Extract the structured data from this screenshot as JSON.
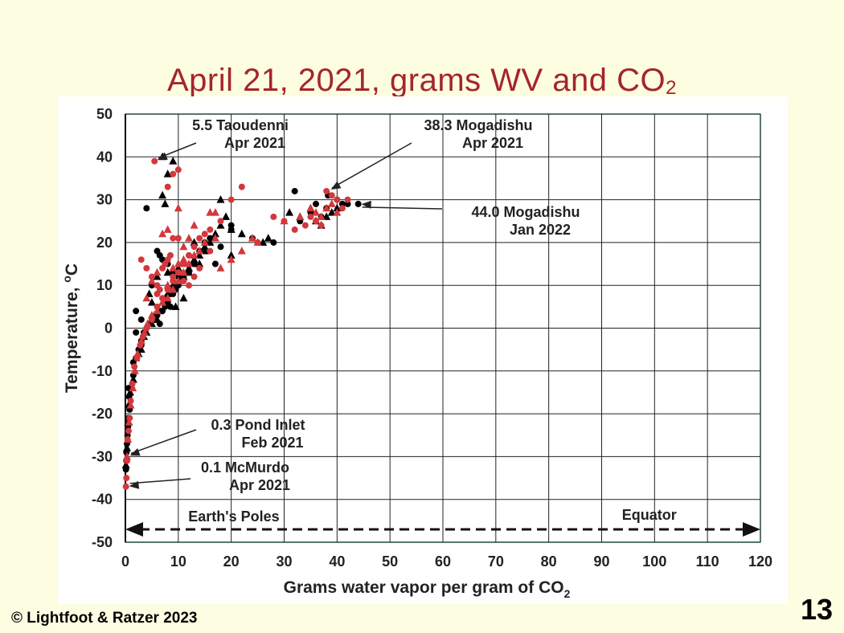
{
  "slide": {
    "title_main": "April 21, 2021, grams WV and CO",
    "title_sub": "2",
    "copyright": "© Lightfoot & Ratzer 2023",
    "slide_number": "13"
  },
  "colors": {
    "title": "#a5252b",
    "background": "#fdfde1",
    "series_black": "#000000",
    "series_red": "#d2383c",
    "grid": "#222222",
    "frame": "#8dc9b8"
  },
  "chart_data": {
    "type": "scatter",
    "xlabel_main": "Grams water vapor per gram of CO",
    "xlabel_sub": "2",
    "ylabel_main": "Temperature, ",
    "ylabel_sup": "o",
    "ylabel_unit": "C",
    "xlim": [
      0,
      120
    ],
    "ylim": [
      -50,
      50
    ],
    "xticks": [
      0,
      10,
      20,
      30,
      40,
      50,
      60,
      70,
      80,
      90,
      100,
      110,
      120
    ],
    "yticks": [
      -50,
      -40,
      -30,
      -20,
      -10,
      0,
      10,
      20,
      30,
      40,
      50
    ],
    "grid": true,
    "arrow": {
      "y": -47,
      "x_from": 0,
      "x_to": 120,
      "left_label": "Earth's Poles",
      "right_label": "Equator"
    },
    "annotations": [
      {
        "lines": [
          "5.5 Taoudenni",
          "Apr 2021"
        ],
        "point": [
          5.5,
          39
        ]
      },
      {
        "lines": [
          "38.3 Mogadishu",
          "Apr 2021"
        ],
        "point": [
          38.3,
          32
        ]
      },
      {
        "lines": [
          "44.0 Mogadishu",
          "Jan 2022"
        ],
        "point": [
          44,
          29
        ]
      },
      {
        "lines": [
          "0.3 Pond Inlet",
          "Feb 2021"
        ],
        "point": [
          0.3,
          -30
        ]
      },
      {
        "lines": [
          "0.1 McMurdo",
          "Apr 2021"
        ],
        "point": [
          0.1,
          -37
        ]
      }
    ],
    "series": [
      {
        "marker": "circle",
        "color": "#000000",
        "points": [
          [
            0.1,
            -33
          ],
          [
            0.2,
            -31
          ],
          [
            0.2,
            -29
          ],
          [
            0.3,
            -27
          ],
          [
            0.4,
            -25
          ],
          [
            0.5,
            -23
          ],
          [
            0.6,
            -21
          ],
          [
            0.8,
            -19
          ],
          [
            0.7,
            -16
          ],
          [
            0.6,
            -14
          ],
          [
            1.2,
            -14
          ],
          [
            1.5,
            -11
          ],
          [
            2,
            -7
          ],
          [
            2.5,
            -5
          ],
          [
            3,
            -3
          ],
          [
            3.5,
            -1
          ],
          [
            4,
            0
          ],
          [
            4.5,
            1
          ],
          [
            5,
            2
          ],
          [
            5.5,
            2
          ],
          [
            6,
            3
          ],
          [
            6.5,
            1
          ],
          [
            7,
            4
          ],
          [
            7.5,
            5
          ],
          [
            8,
            6
          ],
          [
            8.5,
            5
          ],
          [
            9,
            8
          ],
          [
            9.5,
            9
          ],
          [
            10,
            10
          ],
          [
            11,
            12
          ],
          [
            12,
            13
          ],
          [
            13,
            15
          ],
          [
            14,
            18
          ],
          [
            15,
            20
          ],
          [
            16,
            21
          ],
          [
            17,
            15
          ],
          [
            18,
            19
          ],
          [
            20,
            23
          ],
          [
            24,
            21
          ],
          [
            28,
            20
          ],
          [
            32,
            32
          ],
          [
            33,
            25
          ],
          [
            35,
            27
          ],
          [
            36,
            29
          ],
          [
            37,
            26
          ],
          [
            38,
            28
          ],
          [
            38.3,
            31
          ],
          [
            40,
            30
          ],
          [
            41,
            29
          ],
          [
            42,
            29
          ],
          [
            44,
            29
          ],
          [
            4,
            28
          ],
          [
            6,
            18
          ],
          [
            6.5,
            17
          ],
          [
            7,
            16
          ],
          [
            8,
            15
          ],
          [
            9,
            13
          ],
          [
            10,
            12
          ],
          [
            2,
            -1
          ],
          [
            3,
            -4
          ],
          [
            1.5,
            -8
          ],
          [
            2,
            4
          ],
          [
            3,
            2
          ],
          [
            5,
            10
          ],
          [
            20,
            24
          ]
        ]
      },
      {
        "marker": "triangle",
        "color": "#000000",
        "points": [
          [
            0.1,
            -32
          ],
          [
            0.3,
            -28
          ],
          [
            0.5,
            -22
          ],
          [
            0.6,
            -18
          ],
          [
            0.9,
            -15
          ],
          [
            1.5,
            -12
          ],
          [
            2,
            -7
          ],
          [
            2.5,
            -6
          ],
          [
            3,
            -5
          ],
          [
            3.5,
            -2
          ],
          [
            4,
            -1
          ],
          [
            5,
            1
          ],
          [
            5.5,
            3
          ],
          [
            6,
            2
          ],
          [
            6.5,
            4
          ],
          [
            7,
            6
          ],
          [
            7.5,
            7
          ],
          [
            8,
            8
          ],
          [
            8.5,
            9
          ],
          [
            9,
            10
          ],
          [
            10,
            11
          ],
          [
            11,
            12
          ],
          [
            12,
            14
          ],
          [
            13,
            16
          ],
          [
            14,
            17
          ],
          [
            15,
            19
          ],
          [
            16,
            20
          ],
          [
            17,
            22
          ],
          [
            18,
            24
          ],
          [
            19,
            26
          ],
          [
            20,
            23
          ],
          [
            7,
            40
          ],
          [
            8,
            36
          ],
          [
            9,
            39
          ],
          [
            7,
            31
          ],
          [
            7.5,
            29
          ],
          [
            13,
            20
          ],
          [
            15,
            18
          ],
          [
            18,
            30
          ],
          [
            20,
            17
          ],
          [
            31,
            27
          ],
          [
            33,
            26
          ],
          [
            35,
            28
          ],
          [
            36,
            25
          ],
          [
            37,
            24
          ],
          [
            38,
            26
          ],
          [
            39,
            27
          ],
          [
            40,
            28
          ],
          [
            22,
            22
          ],
          [
            26,
            20
          ],
          [
            27,
            21
          ],
          [
            6,
            12
          ],
          [
            8,
            13
          ],
          [
            10,
            14
          ],
          [
            12,
            13
          ],
          [
            4.5,
            8
          ],
          [
            5,
            6
          ],
          [
            9.5,
            5
          ],
          [
            11,
            7
          ],
          [
            14,
            15
          ]
        ]
      },
      {
        "marker": "circle",
        "color": "#d2383c",
        "points": [
          [
            0.1,
            -37
          ],
          [
            0.2,
            -35
          ],
          [
            0.3,
            -31
          ],
          [
            0.4,
            -26
          ],
          [
            0.6,
            -24
          ],
          [
            0.8,
            -21
          ],
          [
            1,
            -17
          ],
          [
            1.3,
            -13
          ],
          [
            1.7,
            -9
          ],
          [
            2.2,
            -7
          ],
          [
            2.8,
            -4
          ],
          [
            3.3,
            -2
          ],
          [
            4,
            0
          ],
          [
            5,
            2
          ],
          [
            6,
            5
          ],
          [
            7,
            7
          ],
          [
            8,
            9
          ],
          [
            9,
            11
          ],
          [
            10,
            13
          ],
          [
            11,
            15
          ],
          [
            12,
            17
          ],
          [
            13,
            19
          ],
          [
            14,
            21
          ],
          [
            15,
            22
          ],
          [
            16,
            23
          ],
          [
            18,
            25
          ],
          [
            20,
            30
          ],
          [
            22,
            33
          ],
          [
            25,
            20
          ],
          [
            28,
            26
          ],
          [
            30,
            25
          ],
          [
            32,
            23
          ],
          [
            34,
            24
          ],
          [
            35,
            26
          ],
          [
            36,
            25
          ],
          [
            37,
            24
          ],
          [
            38,
            32
          ],
          [
            39,
            31
          ],
          [
            40,
            30
          ],
          [
            41,
            28
          ],
          [
            42,
            30
          ],
          [
            5.5,
            39
          ],
          [
            9,
            36
          ],
          [
            10,
            37
          ],
          [
            8,
            33
          ],
          [
            9,
            21
          ],
          [
            10,
            21
          ],
          [
            6,
            10
          ],
          [
            7,
            14
          ],
          [
            8,
            16
          ],
          [
            9,
            12
          ],
          [
            11,
            11
          ],
          [
            12,
            10
          ],
          [
            13,
            12
          ],
          [
            3,
            16
          ],
          [
            4,
            14
          ],
          [
            5,
            12
          ],
          [
            6,
            8
          ],
          [
            6.5,
            9
          ],
          [
            7.5,
            15
          ],
          [
            8.5,
            17
          ],
          [
            14,
            14
          ],
          [
            16,
            18
          ]
        ]
      },
      {
        "marker": "triangle",
        "color": "#d2383c",
        "points": [
          [
            0.3,
            -30
          ],
          [
            0.5,
            -26
          ],
          [
            0.7,
            -22
          ],
          [
            1,
            -18
          ],
          [
            1.4,
            -14
          ],
          [
            1.8,
            -10
          ],
          [
            2.3,
            -6
          ],
          [
            3,
            -3
          ],
          [
            3.6,
            -1
          ],
          [
            4.2,
            1
          ],
          [
            5,
            3
          ],
          [
            6,
            4
          ],
          [
            7,
            6
          ],
          [
            8,
            7
          ],
          [
            9,
            9
          ],
          [
            10,
            11
          ],
          [
            11,
            13
          ],
          [
            12,
            15
          ],
          [
            13,
            17
          ],
          [
            15,
            20
          ],
          [
            17,
            21
          ],
          [
            18,
            14
          ],
          [
            20,
            16
          ],
          [
            22,
            18
          ],
          [
            24,
            21
          ],
          [
            25,
            20
          ],
          [
            30,
            25
          ],
          [
            33,
            26
          ],
          [
            35,
            28
          ],
          [
            36,
            27
          ],
          [
            37,
            26
          ],
          [
            38,
            28
          ],
          [
            39,
            29
          ],
          [
            40,
            27
          ],
          [
            10,
            28
          ],
          [
            13,
            24
          ],
          [
            16,
            27
          ],
          [
            17,
            27
          ],
          [
            7,
            22
          ],
          [
            8,
            23
          ],
          [
            11,
            19
          ],
          [
            12,
            21
          ],
          [
            14,
            18
          ],
          [
            5,
            11
          ],
          [
            6,
            13
          ],
          [
            9,
            14
          ],
          [
            10,
            15
          ],
          [
            11,
            16
          ],
          [
            8,
            10
          ],
          [
            4,
            7
          ]
        ]
      }
    ]
  }
}
